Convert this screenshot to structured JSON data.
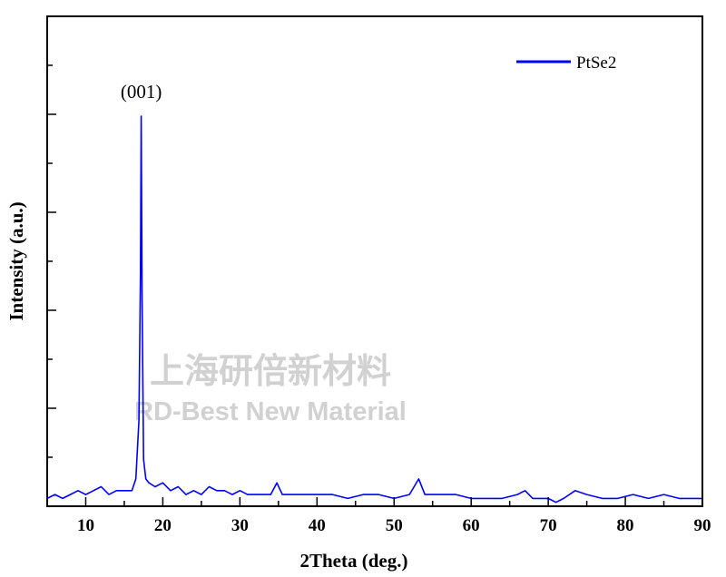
{
  "watermark": {
    "line1": "上海研倍新材料",
    "line2": "RD-Best New Material"
  },
  "chart_data": {
    "type": "line",
    "title": "",
    "xlabel": "2Theta (deg.)",
    "ylabel": "Intensity (a.u.)",
    "xlim": [
      5,
      90
    ],
    "ylim": [
      0,
      1.0
    ],
    "x_ticks": [
      10,
      20,
      30,
      40,
      50,
      60,
      70,
      80,
      90
    ],
    "y_ticks_labeled": false,
    "grid": false,
    "legend_position": "top-right",
    "annotations": [
      {
        "text": "(001)",
        "x": 17.2,
        "y": 1.0
      }
    ],
    "series": [
      {
        "name": "PtSe2",
        "color": "#0000ff",
        "x": [
          5.0,
          6.0,
          7.0,
          8.0,
          9.0,
          10.0,
          11.0,
          12.0,
          13.0,
          14.0,
          15.0,
          16.0,
          16.5,
          16.9,
          17.1,
          17.2,
          17.3,
          17.5,
          17.8,
          18.2,
          19.0,
          20.0,
          21.0,
          22.0,
          23.0,
          24.0,
          25.0,
          26.0,
          27.0,
          28.0,
          29.0,
          30.0,
          31.0,
          32.0,
          33.0,
          34.0,
          34.8,
          35.5,
          36.0,
          38.0,
          40.0,
          42.0,
          44.0,
          46.0,
          48.0,
          50.0,
          52.0,
          53.2,
          54.0,
          56.0,
          58.0,
          60.0,
          62.0,
          64.0,
          66.0,
          67.0,
          68.0,
          70.0,
          71.0,
          72.0,
          73.5,
          75.0,
          77.0,
          79.0,
          81.0,
          83.0,
          85.0,
          87.0,
          89.0,
          90.0
        ],
        "values": [
          0.02,
          0.03,
          0.02,
          0.03,
          0.04,
          0.03,
          0.04,
          0.05,
          0.03,
          0.04,
          0.04,
          0.04,
          0.07,
          0.22,
          0.6,
          1.0,
          0.55,
          0.12,
          0.07,
          0.06,
          0.05,
          0.06,
          0.04,
          0.05,
          0.03,
          0.04,
          0.03,
          0.05,
          0.04,
          0.04,
          0.03,
          0.04,
          0.03,
          0.03,
          0.03,
          0.03,
          0.06,
          0.03,
          0.03,
          0.03,
          0.03,
          0.03,
          0.02,
          0.03,
          0.03,
          0.02,
          0.03,
          0.07,
          0.03,
          0.03,
          0.03,
          0.02,
          0.02,
          0.02,
          0.03,
          0.04,
          0.02,
          0.02,
          0.01,
          0.02,
          0.04,
          0.03,
          0.02,
          0.02,
          0.03,
          0.02,
          0.03,
          0.02,
          0.02,
          0.02
        ]
      }
    ]
  }
}
